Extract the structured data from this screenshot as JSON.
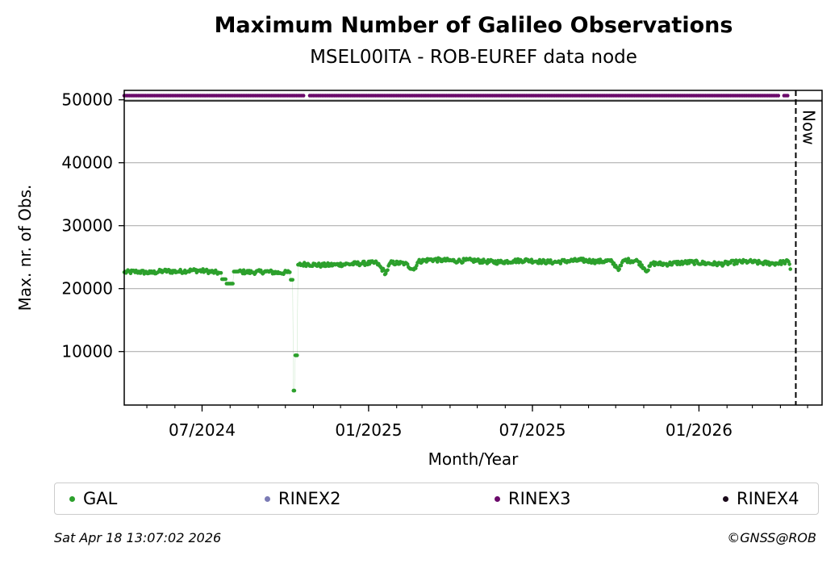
{
  "chart_data": {
    "type": "scatter",
    "title": "Maximum Number of Galileo Observations",
    "subtitle": "MSEL00ITA - ROB-EUREF data node",
    "xlabel": "Month/Year",
    "ylabel": "Max. nr. of Obs.",
    "x_range": [
      "2024-04-06",
      "2026-05-17"
    ],
    "ylim": [
      1500,
      51500
    ],
    "y_ticks": [
      10000,
      20000,
      30000,
      40000,
      50000
    ],
    "x_ticks": [
      {
        "date": "2024-07-01",
        "label": "07/2024"
      },
      {
        "date": "2025-01-01",
        "label": "01/2025"
      },
      {
        "date": "2025-07-01",
        "label": "07/2025"
      },
      {
        "date": "2026-01-01",
        "label": "01/2026"
      }
    ],
    "grid": "horizontal",
    "now_marker": {
      "date": "2026-04-18",
      "label": "Now"
    },
    "series": [
      {
        "name": "GAL",
        "color": "#2ca02c",
        "points": [
          [
            "2024-04-06",
            22600
          ],
          [
            "2024-04-20",
            22700
          ],
          [
            "2024-05-05",
            22500
          ],
          [
            "2024-05-20",
            22800
          ],
          [
            "2024-06-05",
            22700
          ],
          [
            "2024-06-20",
            22900
          ],
          [
            "2024-07-05",
            22800
          ],
          [
            "2024-07-20",
            22500
          ],
          [
            "2024-07-25",
            21500
          ],
          [
            "2024-07-30",
            20800
          ],
          [
            "2024-08-10",
            22700
          ],
          [
            "2024-08-25",
            22600
          ],
          [
            "2024-09-10",
            22700
          ],
          [
            "2024-09-25",
            22500
          ],
          [
            "2024-10-05",
            22600
          ],
          [
            "2024-10-09",
            21400
          ],
          [
            "2024-10-10",
            3800
          ],
          [
            "2024-10-14",
            9400
          ],
          [
            "2024-10-16",
            23800
          ],
          [
            "2024-10-25",
            23900
          ],
          [
            "2024-11-10",
            23700
          ],
          [
            "2024-11-25",
            23800
          ],
          [
            "2024-12-10",
            23900
          ],
          [
            "2024-12-25",
            24000
          ],
          [
            "2025-01-10",
            24100
          ],
          [
            "2025-01-20",
            22400
          ],
          [
            "2025-01-25",
            24100
          ],
          [
            "2025-02-10",
            24000
          ],
          [
            "2025-02-20",
            23000
          ],
          [
            "2025-02-25",
            24300
          ],
          [
            "2025-03-10",
            24600
          ],
          [
            "2025-03-25",
            24500
          ],
          [
            "2025-04-10",
            24400
          ],
          [
            "2025-04-25",
            24500
          ],
          [
            "2025-05-10",
            24300
          ],
          [
            "2025-05-25",
            24200
          ],
          [
            "2025-06-10",
            24400
          ],
          [
            "2025-06-25",
            24500
          ],
          [
            "2025-07-10",
            24300
          ],
          [
            "2025-07-25",
            24200
          ],
          [
            "2025-08-10",
            24400
          ],
          [
            "2025-08-25",
            24500
          ],
          [
            "2025-09-10",
            24300
          ],
          [
            "2025-09-25",
            24400
          ],
          [
            "2025-10-05",
            23100
          ],
          [
            "2025-10-10",
            24500
          ],
          [
            "2025-10-25",
            24400
          ],
          [
            "2025-11-05",
            22800
          ],
          [
            "2025-11-10",
            24000
          ],
          [
            "2025-11-25",
            23900
          ],
          [
            "2025-12-10",
            24100
          ],
          [
            "2025-12-25",
            24200
          ],
          [
            "2026-01-10",
            24000
          ],
          [
            "2026-01-25",
            23900
          ],
          [
            "2026-02-10",
            24200
          ],
          [
            "2026-02-25",
            24300
          ],
          [
            "2026-03-10",
            24100
          ],
          [
            "2026-03-25",
            24000
          ],
          [
            "2026-04-05",
            24200
          ],
          [
            "2026-04-10",
            24300
          ],
          [
            "2026-04-12",
            23100
          ]
        ]
      },
      {
        "name": "RINEX2",
        "color": "#7b7bb5",
        "points": []
      },
      {
        "name": "RINEX3",
        "color": "#6b0a6b",
        "y": 51000,
        "segments": [
          [
            "2024-04-06",
            "2024-10-23"
          ],
          [
            "2024-10-28",
            "2026-03-31"
          ],
          [
            "2026-04-05",
            "2026-04-10"
          ]
        ]
      },
      {
        "name": "RINEX4",
        "color": "#1a0a1a",
        "points": []
      }
    ]
  },
  "legend": [
    {
      "label": "GAL",
      "color": "#2ca02c"
    },
    {
      "label": "RINEX2",
      "color": "#7b7bb5"
    },
    {
      "label": "RINEX3",
      "color": "#6b0a6b"
    },
    {
      "label": "RINEX4",
      "color": "#1a0a1a"
    }
  ],
  "footer": {
    "timestamp": "Sat Apr 18 13:07:02 2026",
    "credit": "©GNSS@ROB"
  }
}
